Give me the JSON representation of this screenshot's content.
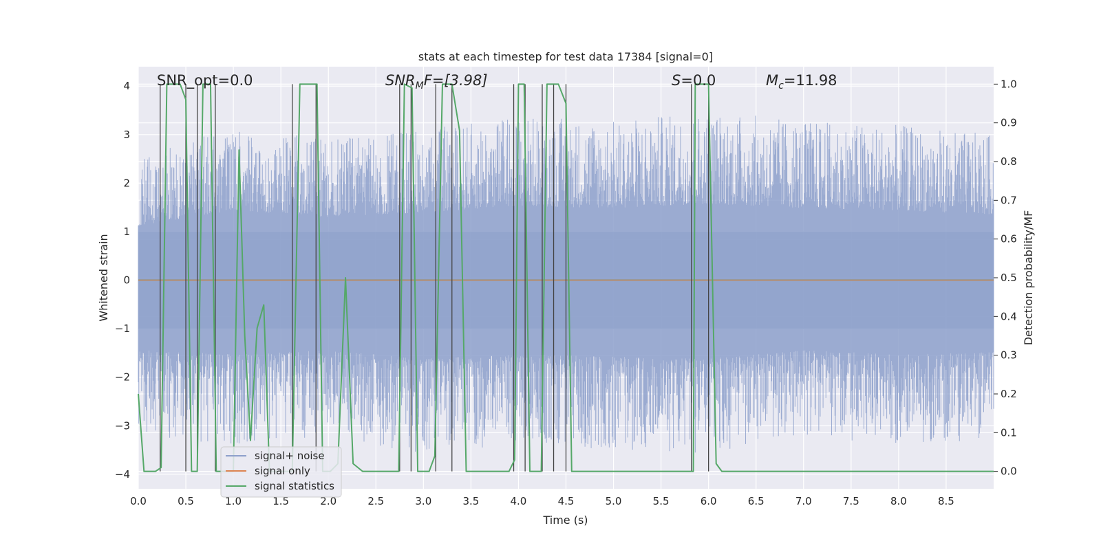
{
  "chart_data": {
    "type": "line",
    "title": "stats at each timestep for test data 17384 [signal=0]",
    "xlabel": "Time (s)",
    "ylabel": "Whitened strain",
    "y2label": "Detection probability/MF",
    "xlim": [
      0.0,
      9.0
    ],
    "ylim": [
      -4.3,
      4.4
    ],
    "y2lim": [
      -0.045,
      1.045
    ],
    "x_ticks": [
      "0.0",
      "0.5",
      "1.0",
      "1.5",
      "2.0",
      "2.5",
      "3.0",
      "3.5",
      "4.0",
      "4.5",
      "5.0",
      "5.5",
      "6.0",
      "6.5",
      "7.0",
      "7.5",
      "8.0",
      "8.5"
    ],
    "x_tick_values": [
      0.0,
      0.5,
      1.0,
      1.5,
      2.0,
      2.5,
      3.0,
      3.5,
      4.0,
      4.5,
      5.0,
      5.5,
      6.0,
      6.5,
      7.0,
      7.5,
      8.0,
      8.5
    ],
    "y_ticks": [
      "−4",
      "−3",
      "−2",
      "−1",
      "0",
      "1",
      "2",
      "3",
      "4"
    ],
    "y_tick_values": [
      -4,
      -3,
      -2,
      -1,
      0,
      1,
      2,
      3,
      4
    ],
    "y2_ticks": [
      "0.0",
      "0.1",
      "0.2",
      "0.3",
      "0.4",
      "0.5",
      "0.6",
      "0.7",
      "0.8",
      "0.9",
      "1.0"
    ],
    "y2_tick_values": [
      0.0,
      0.1,
      0.2,
      0.3,
      0.4,
      0.5,
      0.6,
      0.7,
      0.8,
      0.9,
      1.0
    ],
    "grid": true,
    "legend_position": "lower-left",
    "annotations": {
      "snr_opt": "SNR_opt=0.0",
      "snr_mf_symbol": "SNR",
      "snr_mf_sub": "M",
      "snr_mf_rest": "F=[3.98]",
      "s_symbol": "S",
      "s_rest": "=0.0",
      "mc_symbol": "M",
      "mc_sub": "c",
      "mc_rest": "=11.98"
    },
    "series": [
      {
        "name": "signal+ noise",
        "axis": "left",
        "color": "#8da0cb",
        "kind": "noise",
        "envelope_x": [
          0.0,
          1.0,
          2.0,
          3.0,
          4.0,
          5.0,
          6.0,
          7.0,
          8.0,
          9.0
        ],
        "envelope_hi": [
          2.5,
          3.2,
          2.9,
          3.1,
          3.4,
          3.3,
          3.5,
          3.3,
          3.2,
          3.0
        ],
        "envelope_lo": [
          -3.2,
          -3.4,
          -3.2,
          -3.6,
          -3.4,
          -3.5,
          -3.6,
          -3.2,
          -3.4,
          -3.3
        ]
      },
      {
        "name": "signal only",
        "axis": "left",
        "color": "#dd8452",
        "x": [
          0.0,
          9.0
        ],
        "y": [
          0.0,
          0.0
        ]
      },
      {
        "name": "signal statistics",
        "axis": "right",
        "color": "#55a868",
        "x": [
          0.0,
          0.06,
          0.18,
          0.24,
          0.3,
          0.44,
          0.5,
          0.56,
          0.62,
          0.68,
          0.76,
          0.82,
          0.88,
          1.0,
          1.06,
          1.12,
          1.18,
          1.25,
          1.32,
          1.38,
          1.44,
          1.5,
          1.56,
          1.62,
          1.7,
          1.88,
          1.94,
          2.02,
          2.1,
          2.18,
          2.26,
          2.36,
          2.74,
          2.8,
          2.88,
          2.94,
          3.06,
          3.12,
          3.2,
          3.3,
          3.38,
          3.45,
          3.9,
          3.96,
          4.0,
          4.06,
          4.12,
          4.24,
          4.3,
          4.42,
          4.5,
          4.56,
          5.78,
          5.84,
          5.86,
          6.0,
          6.08,
          6.14,
          9.0
        ],
        "y": [
          0.2,
          0.0,
          0.0,
          0.01,
          1.0,
          1.0,
          0.96,
          0.0,
          0.0,
          1.0,
          1.0,
          0.0,
          0.0,
          0.0,
          0.83,
          0.35,
          0.08,
          0.37,
          0.43,
          0.0,
          0.0,
          0.0,
          0.0,
          0.0,
          1.0,
          1.0,
          0.0,
          0.0,
          0.02,
          0.5,
          0.02,
          0.0,
          0.0,
          1.0,
          0.99,
          0.0,
          0.0,
          0.04,
          1.0,
          1.0,
          0.88,
          0.0,
          0.0,
          0.03,
          1.0,
          1.0,
          0.0,
          0.0,
          1.0,
          1.0,
          0.95,
          0.0,
          0.0,
          0.0,
          1.0,
          1.0,
          0.02,
          0.0,
          0.0
        ]
      }
    ],
    "vertical_markers": [
      0.23,
      0.5,
      0.62,
      0.81,
      1.62,
      1.87,
      2.75,
      2.87,
      3.13,
      3.3,
      3.95,
      4.07,
      4.25,
      4.37,
      4.5,
      5.82,
      6.0
    ]
  }
}
